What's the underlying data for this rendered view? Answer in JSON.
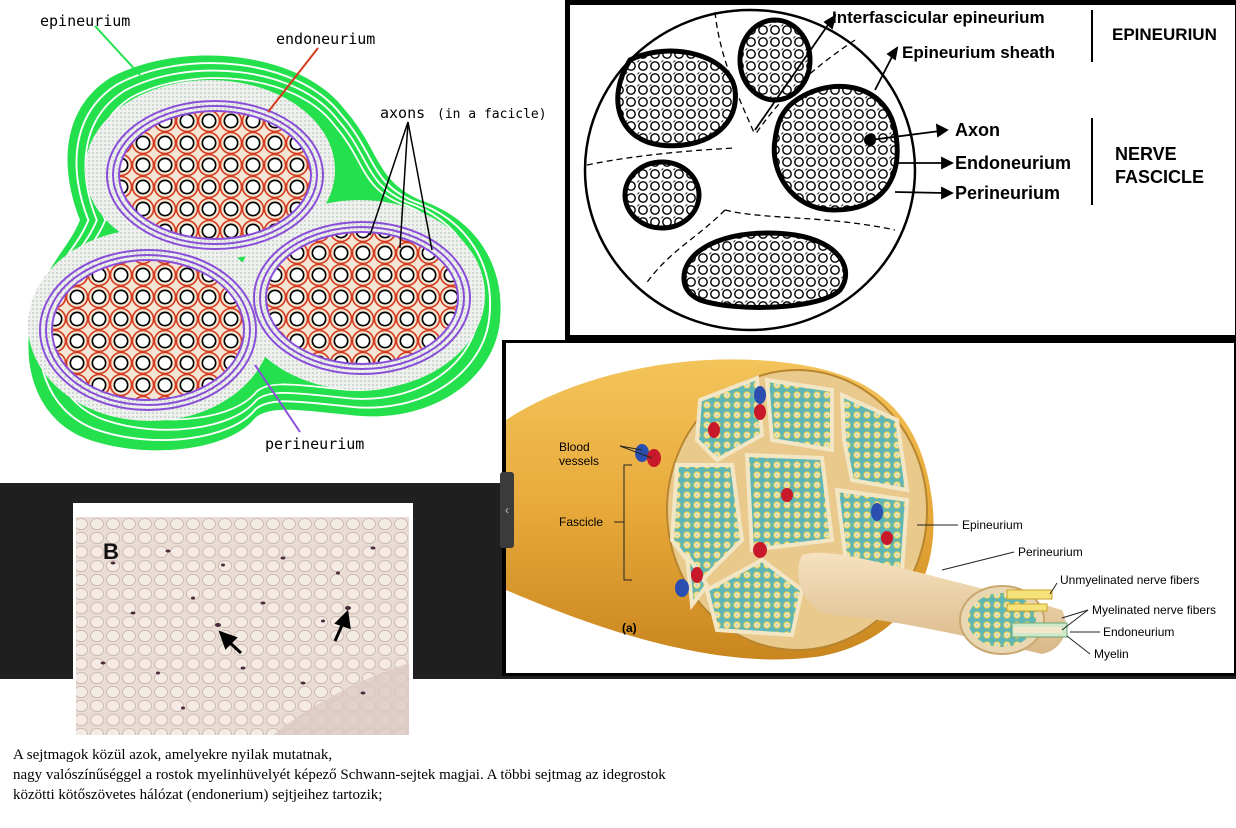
{
  "panel_a": {
    "labels": {
      "epineurium": "epineurium",
      "endoneurium": "endoneurium",
      "axons": "axons",
      "axons_note": "(in a facicle)",
      "perineurium": "perineurium"
    },
    "colors": {
      "epineurium": "#22e04a",
      "perineurium": "#8a4fd8",
      "endoneurium": "#d63a1e"
    }
  },
  "panel_b": {
    "labels": {
      "interfascicular_epineurium": "Interfascicular epineurium",
      "epineurium_sheath": "Epineurium sheath",
      "group_epineurium": "EPINEURIUN",
      "axon": "Axon",
      "endoneurium": "Endoneurium",
      "perineurium": "Perineurium",
      "group_fascicle_1": "NERVE",
      "group_fascicle_2": "FASCICLE"
    }
  },
  "panel_c": {
    "labels": {
      "blood_1": "Blood",
      "blood_2": "vessels",
      "fascicle": "Fascicle",
      "epineurium": "Epineurium",
      "perineurium": "Perineurium",
      "unmyelinated": "Unmyelinated nerve fibers",
      "myelinated": "Myelinated nerve fibers",
      "endoneurium": "Endoneurium",
      "myelin": "Myelin",
      "panel_letter": "(a)"
    }
  },
  "panel_d": {
    "letter": "B"
  },
  "caption": {
    "line1": "A sejtmagok közül azok, amelyekre nyilak mutatnak,",
    "line2": "nagy valószínűséggel a rostok myelinhüvelyét képező Schwann-sejtek magjai. A többi sejtmag az idegrostok",
    "line3": "közötti kötőszövetes hálózat (endonerium) sejtjeihez tartozik;"
  }
}
